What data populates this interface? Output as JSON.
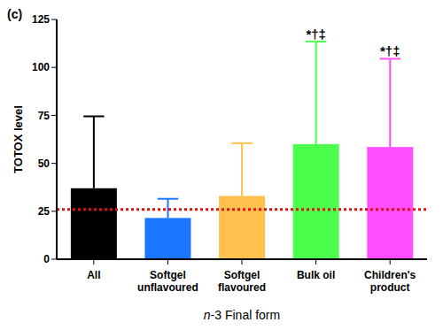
{
  "chart_data": {
    "type": "bar",
    "title": "(c)",
    "x_label": "n-3 Final form",
    "y_label": "TOTOX level",
    "categories": [
      "All",
      "Softgel unflavoured",
      "Softgel flavoured",
      "Bulk oil",
      "Children's product"
    ],
    "values": [
      37,
      21.5,
      33,
      60,
      58.5
    ],
    "errors": [
      37.5,
      10,
      27.5,
      53.5,
      46
    ],
    "colors": [
      "#000000",
      "#1a75ff",
      "#ffc04d",
      "#4dff4d",
      "#ff4dff"
    ],
    "annotations": [
      {
        "category": "Bulk oil",
        "text": "*†‡"
      },
      {
        "category": "Children's product",
        "text": "*†‡"
      }
    ],
    "reference_line": {
      "value": 26,
      "color": "#e01010",
      "line_style": "dotted"
    },
    "ylim": [
      0,
      125
    ],
    "yticks": [
      0,
      25,
      50,
      75,
      100,
      125
    ],
    "grid": false
  }
}
